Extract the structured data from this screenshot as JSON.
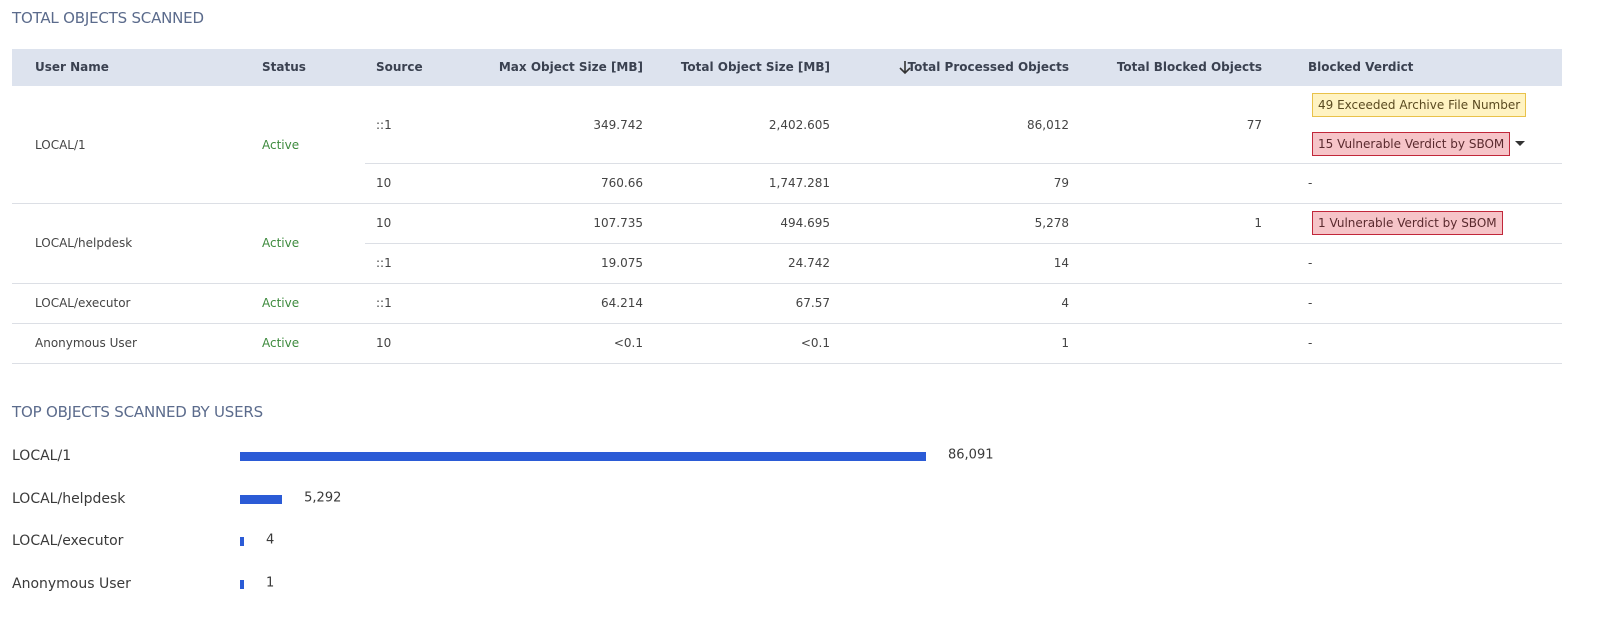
{
  "table_section": {
    "title": "TOTAL OBJECTS SCANNED",
    "headers": [
      "User Name",
      "Status",
      "Source",
      "Max Object Size [MB]",
      "Total Object Size [MB]",
      "Total Processed Objects",
      "Total Blocked Objects",
      "Blocked Verdict"
    ],
    "groups": [
      {
        "user": "LOCAL/1",
        "status": "Active",
        "rows": [
          {
            "source": "::1",
            "max_size": "349.742",
            "total_size": "2,402.605",
            "processed": "86,012",
            "blocked": "77",
            "verdicts": [
              "49 Exceeded Archive File Number",
              "15 Vulnerable Verdict by SBOM"
            ]
          },
          {
            "source": "10",
            "max_size": "760.66",
            "total_size": "1,747.281",
            "processed": "79",
            "no_verdict": "-"
          }
        ]
      },
      {
        "user": "LOCAL/helpdesk",
        "status": "Active",
        "rows": [
          {
            "source": "10",
            "max_size": "107.735",
            "total_size": "494.695",
            "processed": "5,278",
            "blocked": "1",
            "verdicts": [
              "1 Vulnerable Verdict by SBOM"
            ]
          },
          {
            "source": "::1",
            "max_size": "19.075",
            "total_size": "24.742",
            "processed": "14",
            "no_verdict": "-"
          }
        ]
      },
      {
        "user": "LOCAL/executor",
        "status": "Active",
        "rows": [
          {
            "source": "::1",
            "max_size": "64.214",
            "total_size": "67.57",
            "processed": "4",
            "no_verdict": "-"
          }
        ]
      },
      {
        "user": "Anonymous User",
        "status": "Active",
        "rows": [
          {
            "source": "10",
            "max_size": "<0.1",
            "total_size": "<0.1",
            "processed": "1",
            "no_verdict": "-"
          }
        ]
      }
    ]
  },
  "bar_section": {
    "title": "TOP OBJECTS SCANNED BY USERS",
    "categories": [
      "LOCAL/1",
      "LOCAL/helpdesk",
      "LOCAL/executor",
      "Anonymous User"
    ],
    "values": [
      86091,
      5292,
      4,
      1
    ],
    "value_labels": [
      "86,091",
      "5,292",
      "4",
      "1"
    ],
    "color": "#2b5bd6"
  }
}
